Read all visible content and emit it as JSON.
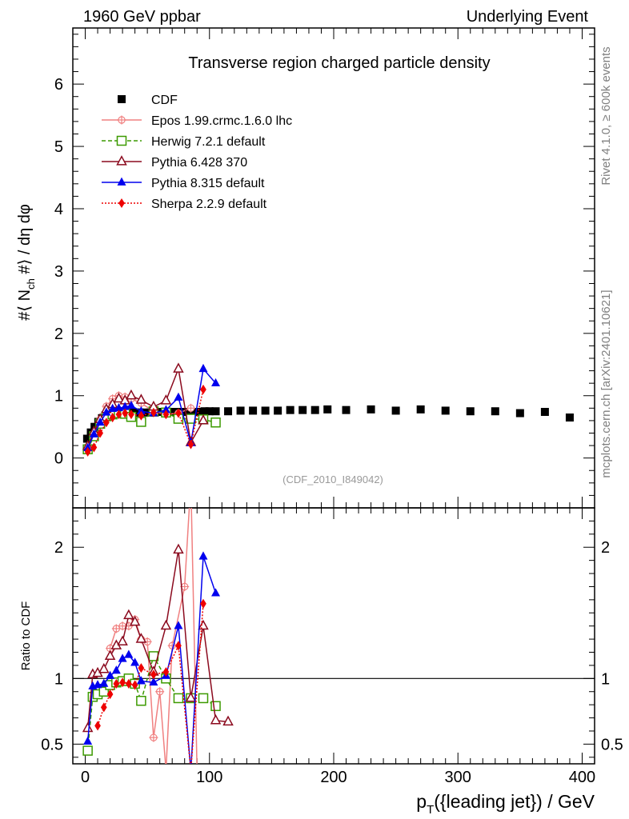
{
  "header": {
    "left": "1960 GeV ppbar",
    "right": "Underlying Event"
  },
  "side_labels": {
    "rivet": "Rivet 4.1.0, ≥ 600k events",
    "mcplots": "mcplots.cern.ch [arXiv:2401.10621]"
  },
  "chart_data": [
    {
      "type": "scatter",
      "panel": "main",
      "title": "Transverse region charged particle density",
      "analysis_tag": "(CDF_2010_I849042)",
      "ylabel": "#⟨ N_ch #⟩ / dη dφ",
      "ylabel_parts": {
        "pre": "#⟨ N",
        "sub": "ch",
        "post": " #⟩ / dη dφ"
      },
      "xlim": [
        -10,
        410
      ],
      "ylim": [
        -0.8,
        6.9
      ],
      "yticks": [
        0,
        1,
        2,
        3,
        4,
        5,
        6
      ],
      "yticklabels": [
        "0",
        "1",
        "2",
        "3",
        "4",
        "5",
        "6"
      ],
      "legend_position": "top-left",
      "series": [
        {
          "name": "CDF",
          "color": "#000000",
          "marker": "square",
          "style": "none",
          "x": [
            1.5,
            4.5,
            7.5,
            10.5,
            13.5,
            16.5,
            19.5,
            22.5,
            25.5,
            28.5,
            31.5,
            34.5,
            37.5,
            40.5,
            44,
            48,
            52,
            56,
            60,
            64,
            68,
            72,
            76,
            80,
            84,
            88,
            92,
            96,
            100,
            105,
            115,
            125,
            135,
            145,
            155,
            165,
            175,
            185,
            195,
            210,
            230,
            250,
            270,
            290,
            310,
            330,
            350,
            370,
            390
          ],
          "y": [
            0.31,
            0.41,
            0.5,
            0.58,
            0.64,
            0.67,
            0.69,
            0.7,
            0.71,
            0.72,
            0.72,
            0.72,
            0.73,
            0.73,
            0.73,
            0.73,
            0.73,
            0.73,
            0.74,
            0.74,
            0.74,
            0.74,
            0.74,
            0.74,
            0.74,
            0.74,
            0.74,
            0.75,
            0.75,
            0.75,
            0.75,
            0.76,
            0.76,
            0.76,
            0.76,
            0.77,
            0.77,
            0.77,
            0.78,
            0.77,
            0.78,
            0.76,
            0.78,
            0.76,
            0.75,
            0.75,
            0.72,
            0.74,
            0.65
          ]
        },
        {
          "name": "Epos 1.99.crmc.1.6.0 lhc",
          "color": "#f08080",
          "marker": "cross-circle",
          "style": "solid",
          "x": [
            2,
            7,
            12,
            17,
            22,
            27,
            32,
            37,
            45,
            55,
            65,
            75,
            85
          ],
          "y": [
            0.13,
            0.38,
            0.62,
            0.83,
            0.95,
            1.0,
            0.98,
            0.95,
            0.88,
            0.75,
            0.7,
            0.72,
            0.8
          ]
        },
        {
          "name": "Herwig 7.2.1 default",
          "color": "#3c9a00",
          "marker": "open-square",
          "style": "dashed",
          "x": [
            2,
            7,
            12,
            17,
            22,
            27,
            32,
            37,
            45,
            55,
            65,
            75,
            85,
            95,
            105
          ],
          "y": [
            0.14,
            0.35,
            0.55,
            0.67,
            0.7,
            0.72,
            0.71,
            0.66,
            0.58,
            0.75,
            0.73,
            0.63,
            0.63,
            0.62,
            0.57
          ]
        },
        {
          "name": "Pythia 6.428 370",
          "color": "#8b0a1e",
          "marker": "open-triangle",
          "style": "solid",
          "x": [
            2,
            7,
            12,
            17,
            22,
            27,
            32,
            37,
            45,
            55,
            65,
            75,
            85,
            95
          ],
          "y": [
            0.19,
            0.42,
            0.62,
            0.78,
            0.86,
            0.95,
            0.92,
            1.0,
            0.93,
            0.82,
            0.92,
            1.43,
            0.25,
            0.6
          ]
        },
        {
          "name": "Pythia 8.315 default",
          "color": "#0000ee",
          "marker": "filled-triangle",
          "style": "solid",
          "x": [
            2,
            7,
            12,
            17,
            22,
            27,
            32,
            37,
            45,
            55,
            65,
            75,
            85,
            95,
            105
          ],
          "y": [
            0.16,
            0.38,
            0.57,
            0.73,
            0.79,
            0.8,
            0.82,
            0.84,
            0.75,
            0.72,
            0.77,
            0.97,
            0.24,
            1.43,
            1.2
          ]
        },
        {
          "name": "Sherpa 2.2.9 default",
          "color": "#ee0000",
          "marker": "diamond",
          "style": "dotted",
          "x": [
            2,
            7,
            12,
            17,
            22,
            27,
            32,
            37,
            45,
            55,
            65,
            75,
            85,
            95
          ],
          "y": [
            0.1,
            0.17,
            0.4,
            0.57,
            0.65,
            0.7,
            0.72,
            0.7,
            0.68,
            0.73,
            0.7,
            0.72,
            0.22,
            1.1
          ]
        }
      ]
    },
    {
      "type": "line",
      "panel": "ratio",
      "ylabel": "Ratio to CDF",
      "xlabel": "p_T({leading jet}) / GeV",
      "xlabel_parts": {
        "pre": "p",
        "sub": "T",
        "post": "({leading jet}) / GeV"
      },
      "xlim": [
        -10,
        410
      ],
      "ylim": [
        0.35,
        2.3
      ],
      "xticks": [
        0,
        100,
        200,
        300,
        400
      ],
      "xticklabels": [
        "0",
        "100",
        "200",
        "300",
        "400"
      ],
      "yticks": [
        0.5,
        1,
        2
      ],
      "yticklabels": [
        "0.5",
        "1",
        "2"
      ],
      "reference": 1,
      "series": [
        {
          "name": "Epos 1.99.crmc.1.6.0 lhc",
          "color": "#f08080",
          "marker": "cross-circle",
          "style": "solid",
          "x": [
            20,
            25,
            30,
            35,
            40,
            45,
            50,
            55,
            60,
            65,
            70,
            80,
            85,
            90
          ],
          "y": [
            1.23,
            1.38,
            1.4,
            1.4,
            1.45,
            1.3,
            1.28,
            0.55,
            0.9,
            0.3,
            1.25,
            1.7,
            2.5,
            0.3
          ]
        },
        {
          "name": "Herwig 7.2.1 default",
          "color": "#3c9a00",
          "marker": "open-square",
          "style": "dashed",
          "x": [
            2,
            6,
            10,
            15,
            20,
            25,
            30,
            35,
            40,
            45,
            55,
            65,
            75,
            85,
            95,
            105
          ],
          "y": [
            0.45,
            0.86,
            0.88,
            0.9,
            0.95,
            0.97,
            0.98,
            1.0,
            0.96,
            0.83,
            1.17,
            1.0,
            0.85,
            0.85,
            0.85,
            0.79
          ]
        },
        {
          "name": "Pythia 6.428 370",
          "color": "#8b0a1e",
          "marker": "open-triangle",
          "style": "solid",
          "x": [
            2,
            6,
            10,
            15,
            20,
            25,
            30,
            35,
            40,
            45,
            55,
            65,
            75,
            85,
            95,
            105,
            115
          ],
          "y": [
            0.62,
            1.03,
            1.04,
            1.07,
            1.17,
            1.25,
            1.28,
            1.48,
            1.43,
            1.3,
            1.05,
            1.4,
            1.98,
            0.85,
            1.4,
            0.68,
            0.67
          ]
        },
        {
          "name": "Pythia 8.315 default",
          "color": "#0000ee",
          "marker": "filled-triangle",
          "style": "solid",
          "x": [
            2,
            6,
            10,
            15,
            20,
            25,
            30,
            35,
            40,
            45,
            55,
            65,
            75,
            85,
            95,
            105
          ],
          "y": [
            0.52,
            0.94,
            0.95,
            0.96,
            1.02,
            1.06,
            1.15,
            1.18,
            1.12,
            0.98,
            0.97,
            1.02,
            1.4,
            0.3,
            1.93,
            1.65
          ]
        },
        {
          "name": "Sherpa 2.2.9 default",
          "color": "#ee0000",
          "marker": "diamond",
          "style": "dotted",
          "x": [
            10,
            15,
            20,
            25,
            30,
            35,
            40,
            45,
            55,
            65,
            75,
            85,
            95
          ],
          "y": [
            0.64,
            0.78,
            0.88,
            0.96,
            0.97,
            0.96,
            0.95,
            1.08,
            1.03,
            1.05,
            1.25,
            0.3,
            1.57
          ]
        }
      ]
    }
  ]
}
